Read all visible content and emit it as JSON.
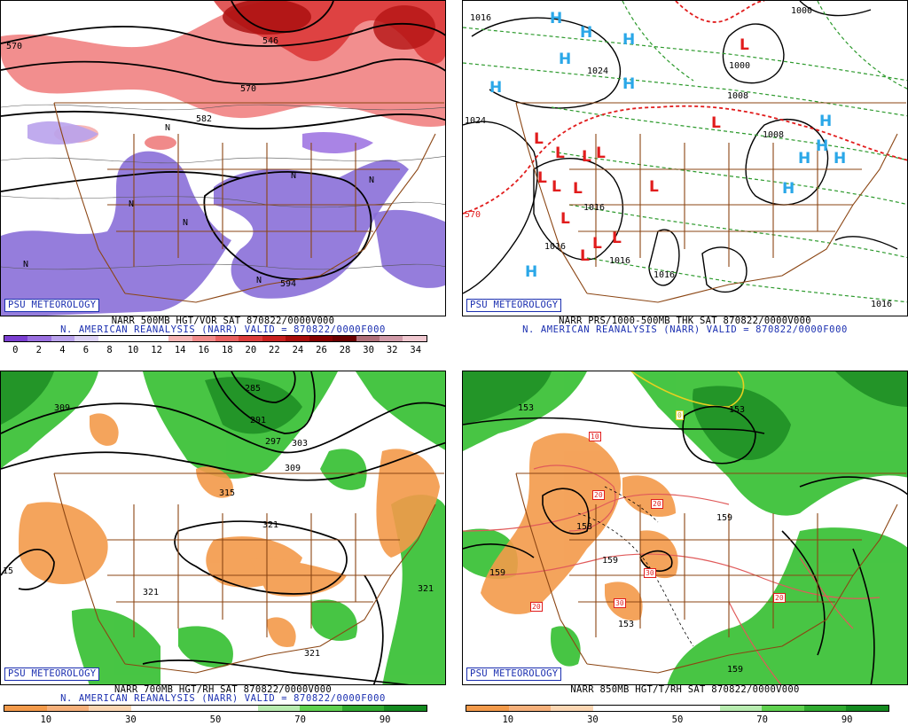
{
  "panels": {
    "p1": {
      "logo": "PSU METEOROLOGY",
      "line1": "NARR 500MB HGT/VOR SAT 870822/0000V000",
      "line2": "N. AMERICAN REANALYSIS (NARR) VALID = 870822/0000F000",
      "colorbar_labels": [
        "0",
        "2",
        "4",
        "6",
        "8",
        "10",
        "12",
        "14",
        "16",
        "18",
        "20",
        "22",
        "24",
        "26",
        "28",
        "30",
        "32",
        "34"
      ],
      "colorbar_colors": [
        "#7b3fd1",
        "#9a6fe0",
        "#b9a2ec",
        "#dcd2f5",
        "#ffffff",
        "#ffffff",
        "#ffffff",
        "#f6b6b6",
        "#f08a8a",
        "#e86060",
        "#dc3c3c",
        "#c82020",
        "#a80c0c",
        "#860000",
        "#6a0000",
        "#b0707a",
        "#d09aa8",
        "#f0c8d0"
      ],
      "contour_labels": [
        "570",
        "582",
        "594",
        "570",
        "546",
        "N",
        "N",
        "N",
        "N",
        "N",
        "N",
        "N"
      ]
    },
    "p2": {
      "logo": "PSU METEOROLOGY",
      "line1": "NARR PRS/1000-500MB THK SAT 870822/0000V000",
      "line2": "N. AMERICAN REANALYSIS (NARR) VALID = 870822/0000F000",
      "highs": [
        "H",
        "H",
        "H",
        "H",
        "H",
        "H",
        "H",
        "H",
        "H",
        "H",
        "H",
        "H"
      ],
      "lows": [
        "L",
        "L",
        "L",
        "L",
        "L",
        "L",
        "L",
        "L",
        "L",
        "L",
        "L",
        "L",
        "L",
        "L"
      ],
      "contour_labels": [
        "1016",
        "1024",
        "1024",
        "1008",
        "1016",
        "1016",
        "1016",
        "1016",
        "1008",
        "1016",
        "570",
        "1000",
        "1016"
      ]
    },
    "p3": {
      "logo": "PSU METEOROLOGY",
      "line1": "NARR 700MB HGT/RH SAT 870822/0000V000",
      "line2": "N. AMERICAN REANALYSIS (NARR) VALID = 870822/0000F000",
      "colorbar_labels": [
        "10",
        "30",
        "50",
        "70",
        "90"
      ],
      "colorbar_colors": [
        "#f39a4a",
        "#f6b07a",
        "#fbd6b2",
        "#ffffff",
        "#ffffff",
        "#ffffff",
        "#b8ecb0",
        "#5fd14f",
        "#2faa2f",
        "#138a1f"
      ],
      "contour_labels": [
        "285",
        "291",
        "297",
        "303",
        "309",
        "309",
        "315",
        "321",
        "321",
        "321",
        "321",
        "315"
      ]
    },
    "p4": {
      "logo": "PSU METEOROLOGY",
      "line1": "NARR 850MB HGT/T/RH SAT 870822/0000V000",
      "line2": "",
      "colorbar_labels": [
        "10",
        "30",
        "50",
        "70",
        "90"
      ],
      "colorbar_colors": [
        "#f39a4a",
        "#f6b07a",
        "#fbd6b2",
        "#ffffff",
        "#ffffff",
        "#ffffff",
        "#b8ecb0",
        "#5fd14f",
        "#2faa2f",
        "#138a1f"
      ],
      "contour_labels": [
        "153",
        "159",
        "153",
        "159",
        "159",
        "153",
        "153",
        "159"
      ],
      "temp_labels": [
        "10",
        "20",
        "20",
        "30",
        "30",
        "20",
        "20",
        "0"
      ]
    }
  },
  "colors": {
    "text_blue": "#1b2fb0",
    "high_blue": "#2aa7e8",
    "low_red": "#e11c1c",
    "border_brown": "#8b4513",
    "rh_green": "#2faa2f",
    "rh_orange": "#f39a4a",
    "vort_red": "#e05050",
    "vort_purple": "#8a6fd8"
  }
}
